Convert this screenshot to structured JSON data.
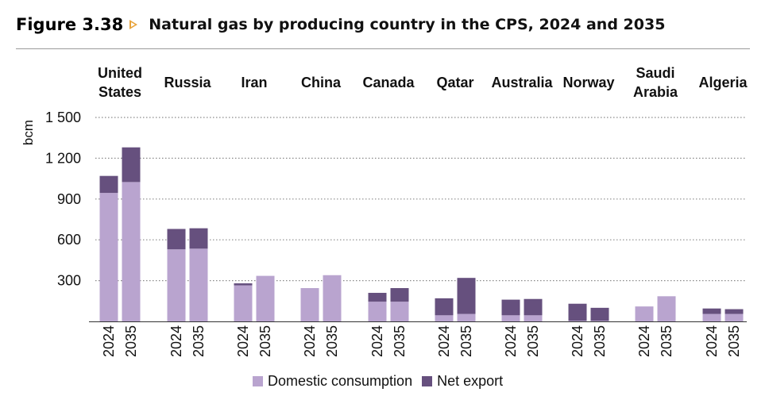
{
  "figure": {
    "number": "Figure 3.38",
    "title": "Natural gas by producing country in the CPS, 2024 and 2035"
  },
  "colors": {
    "domestic": "#b9a4cf",
    "net_export": "#66507e",
    "grid": "#8a8a8a",
    "axis": "#333333",
    "arrow": "#e8a33b"
  },
  "legend": {
    "domestic": "Domestic consumption",
    "net_export": "Net export"
  },
  "chart_data": {
    "type": "bar",
    "stacked": true,
    "title": "Natural gas by producing country in the CPS, 2024 and 2035",
    "ylabel": "bcm",
    "xlabel": "",
    "ylim": [
      0,
      1500
    ],
    "yticks": [
      300,
      600,
      900,
      1200,
      1500
    ],
    "ytick_labels": [
      "300",
      "600",
      "900",
      "1 200",
      "1 500"
    ],
    "grid": true,
    "legend_position": "bottom",
    "groups": [
      {
        "name": [
          "United",
          "States"
        ],
        "years": [
          "2024",
          "2035"
        ],
        "domestic": [
          945,
          1025
        ],
        "net_export": [
          125,
          255
        ]
      },
      {
        "name": [
          "Russia"
        ],
        "years": [
          "2024",
          "2035"
        ],
        "domestic": [
          530,
          535
        ],
        "net_export": [
          150,
          150
        ]
      },
      {
        "name": [
          "Iran"
        ],
        "years": [
          "2024",
          "2035"
        ],
        "domestic": [
          265,
          335
        ],
        "net_export": [
          15,
          0
        ]
      },
      {
        "name": [
          "China"
        ],
        "years": [
          "2024",
          "2035"
        ],
        "domestic": [
          245,
          340
        ],
        "net_export": [
          0,
          0
        ]
      },
      {
        "name": [
          "Canada"
        ],
        "years": [
          "2024",
          "2035"
        ],
        "domestic": [
          145,
          145
        ],
        "net_export": [
          65,
          100
        ]
      },
      {
        "name": [
          "Qatar"
        ],
        "years": [
          "2024",
          "2035"
        ],
        "domestic": [
          45,
          55
        ],
        "net_export": [
          125,
          265
        ]
      },
      {
        "name": [
          "Australia"
        ],
        "years": [
          "2024",
          "2035"
        ],
        "domestic": [
          45,
          45
        ],
        "net_export": [
          115,
          120
        ]
      },
      {
        "name": [
          "Norway"
        ],
        "years": [
          "2024",
          "2035"
        ],
        "domestic": [
          5,
          5
        ],
        "net_export": [
          125,
          95
        ]
      },
      {
        "name": [
          "Saudi",
          "Arabia"
        ],
        "years": [
          "2024",
          "2035"
        ],
        "domestic": [
          110,
          185
        ],
        "net_export": [
          0,
          0
        ]
      },
      {
        "name": [
          "Algeria"
        ],
        "years": [
          "2024",
          "2035"
        ],
        "domestic": [
          55,
          55
        ],
        "net_export": [
          40,
          35
        ]
      }
    ]
  }
}
